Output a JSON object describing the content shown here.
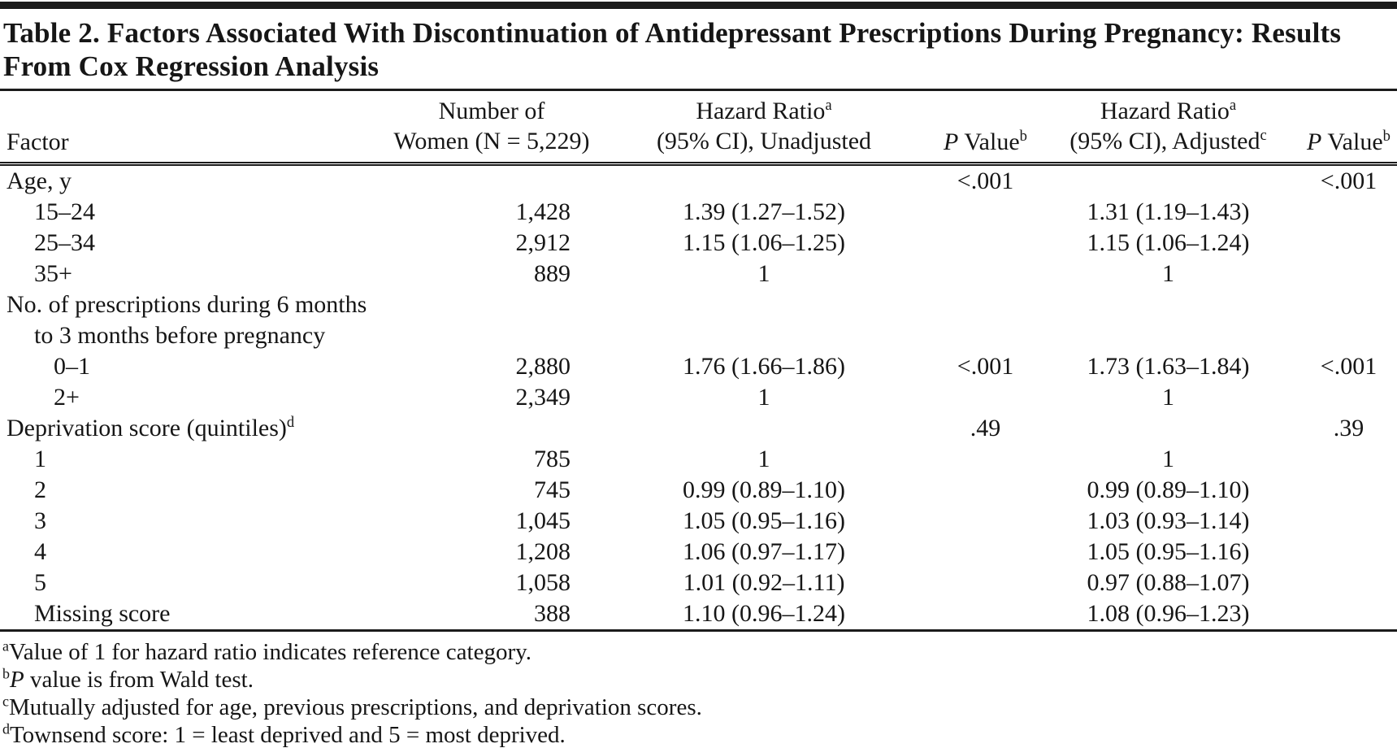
{
  "table": {
    "title": "Table 2. Factors Associated With Discontinuation of Antidepressant Prescriptions During Pregnancy: Results From Cox Regression Analysis",
    "header": {
      "factor": "Factor",
      "n_women": {
        "line1": "Number of",
        "line2": "Women (N = 5,229)"
      },
      "hr_unadj": {
        "line1": "Hazard Ratio",
        "line1_sup": "a",
        "line2": "(95% CI), Unadjusted"
      },
      "p1": {
        "italic": "P",
        "label": " Value",
        "sup": "b"
      },
      "hr_adj": {
        "line1": "Hazard Ratio",
        "line1_sup": "a",
        "line2": "(95% CI), Adjusted",
        "line2_sup": "c"
      },
      "p2": {
        "italic": "P",
        "label": " Value",
        "sup": "b"
      }
    },
    "rows": [
      {
        "factor": "Age, y",
        "indent": 0,
        "n": "",
        "hr_unadj": "",
        "p_unadj": "<.001",
        "hr_adj": "",
        "p_adj": "<.001"
      },
      {
        "factor": "15–24",
        "indent": 1,
        "n": "1,428",
        "hr_unadj": "1.39 (1.27–1.52)",
        "p_unadj": "",
        "hr_adj": "1.31 (1.19–1.43)",
        "p_adj": ""
      },
      {
        "factor": "25–34",
        "indent": 1,
        "n": "2,912",
        "hr_unadj": "1.15 (1.06–1.25)",
        "p_unadj": "",
        "hr_adj": "1.15 (1.06–1.24)",
        "p_adj": ""
      },
      {
        "factor": "35+",
        "indent": 1,
        "n": "889",
        "hr_unadj": "1",
        "p_unadj": "",
        "hr_adj": "1",
        "p_adj": ""
      },
      {
        "factor": "No. of prescriptions during 6 months",
        "indent": 0,
        "n": "",
        "hr_unadj": "",
        "p_unadj": "",
        "hr_adj": "",
        "p_adj": ""
      },
      {
        "factor": "to 3 months before pregnancy",
        "indent": 1,
        "n": "",
        "hr_unadj": "",
        "p_unadj": "",
        "hr_adj": "",
        "p_adj": ""
      },
      {
        "factor": "0–1",
        "indent": 2,
        "n": "2,880",
        "hr_unadj": "1.76 (1.66–1.86)",
        "p_unadj": "<.001",
        "hr_adj": "1.73 (1.63–1.84)",
        "p_adj": "<.001"
      },
      {
        "factor": "2+",
        "indent": 2,
        "n": "2,349",
        "hr_unadj": "1",
        "p_unadj": "",
        "hr_adj": "1",
        "p_adj": ""
      },
      {
        "factor": "Deprivation score (quintiles)",
        "factor_sup": "d",
        "indent": 0,
        "n": "",
        "hr_unadj": "",
        "p_unadj": ".49",
        "hr_adj": "",
        "p_adj": ".39"
      },
      {
        "factor": "1",
        "indent": 1,
        "n": "785",
        "hr_unadj": "1",
        "p_unadj": "",
        "hr_adj": "1",
        "p_adj": ""
      },
      {
        "factor": "2",
        "indent": 1,
        "n": "745",
        "hr_unadj": "0.99 (0.89–1.10)",
        "p_unadj": "",
        "hr_adj": "0.99 (0.89–1.10)",
        "p_adj": ""
      },
      {
        "factor": "3",
        "indent": 1,
        "n": "1,045",
        "hr_unadj": "1.05 (0.95–1.16)",
        "p_unadj": "",
        "hr_adj": "1.03 (0.93–1.14)",
        "p_adj": ""
      },
      {
        "factor": "4",
        "indent": 1,
        "n": "1,208",
        "hr_unadj": "1.06 (0.97–1.17)",
        "p_unadj": "",
        "hr_adj": "1.05 (0.95–1.16)",
        "p_adj": ""
      },
      {
        "factor": "5",
        "indent": 1,
        "n": "1,058",
        "hr_unadj": "1.01 (0.92–1.11)",
        "p_unadj": "",
        "hr_adj": "0.97 (0.88–1.07)",
        "p_adj": ""
      },
      {
        "factor": "Missing score",
        "indent": 1,
        "n": "388",
        "hr_unadj": "1.10 (0.96–1.24)",
        "p_unadj": "",
        "hr_adj": "1.08 (0.96–1.23)",
        "p_adj": ""
      }
    ],
    "footnotes": [
      {
        "sup": "a",
        "italic": "",
        "text": "Value of 1 for hazard ratio indicates reference category."
      },
      {
        "sup": "b",
        "italic": "P",
        "text": " value is from Wald test."
      },
      {
        "sup": "c",
        "italic": "",
        "text": "Mutually adjusted for age, previous prescriptions, and deprivation scores."
      },
      {
        "sup": "d",
        "italic": "",
        "text": "Townsend score: 1 = least deprived and 5 = most deprived."
      }
    ]
  }
}
